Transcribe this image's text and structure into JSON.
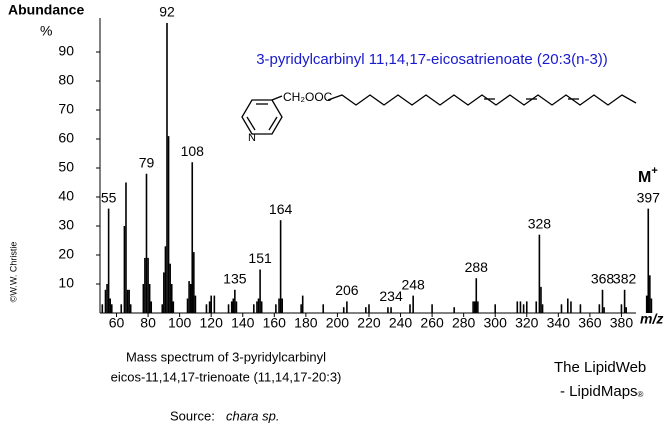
{
  "chart_data": {
    "type": "spectrum",
    "title": "3-pyridylcarbinyl 11,14,17-eicosatrienoate (20:3(n-3))",
    "y_label": "Abundance",
    "y_unit": "%",
    "x_label": "m/z",
    "molecular_ion": {
      "text": "M",
      "sup": "+"
    },
    "structure": {
      "group": "CH₂OOC",
      "atom": "N"
    },
    "caption": [
      "Mass spectrum of 3-pyridylcarbinyl",
      "eicos-11,14,17-trienoate (11,14,17-20:3)"
    ],
    "source": {
      "label": "Source:",
      "text": "chara sp."
    },
    "credit": [
      "The LipidWeb",
      "- LipidMaps",
      "®"
    ],
    "copyright": "©W.W. Christie",
    "color": "#000000",
    "title_color": "#1a1acd",
    "xlim": [
      47,
      400
    ],
    "ylim": [
      0,
      100
    ],
    "xticks": [
      60,
      80,
      100,
      120,
      140,
      160,
      180,
      200,
      220,
      240,
      260,
      280,
      300,
      320,
      340,
      360,
      380
    ],
    "yticks": [
      10,
      20,
      30,
      40,
      50,
      60,
      70,
      80,
      90
    ],
    "x": [
      51,
      53,
      54,
      55,
      56,
      57,
      63,
      65,
      66,
      67,
      68,
      69,
      77,
      78,
      79,
      80,
      81,
      82,
      89,
      90,
      91,
      92,
      93,
      94,
      95,
      96,
      105,
      106,
      107,
      108,
      109,
      110,
      117,
      119,
      120,
      122,
      131,
      133,
      134,
      135,
      136,
      147,
      149,
      150,
      151,
      152,
      161,
      163,
      164,
      165,
      177,
      178,
      191,
      204,
      206,
      218,
      220,
      232,
      234,
      246,
      248,
      260,
      274,
      286,
      287,
      288,
      289,
      300,
      314,
      316,
      318,
      320,
      326,
      328,
      329,
      330,
      342,
      346,
      348,
      354,
      366,
      368,
      369,
      380,
      382,
      383,
      396,
      397,
      398,
      399
    ],
    "values": [
      3,
      8,
      10,
      36,
      5,
      3,
      3,
      30,
      45,
      8,
      8,
      3,
      10,
      19,
      48,
      19,
      10,
      4,
      3,
      14,
      23,
      100,
      61,
      17,
      10,
      4,
      5,
      11,
      10,
      52,
      21,
      6,
      3,
      4,
      6,
      6,
      3,
      4,
      5,
      8,
      4,
      3,
      4,
      5,
      15,
      4,
      3,
      5,
      32,
      5,
      3,
      6,
      3,
      2,
      4,
      2,
      3,
      2,
      2,
      3,
      6,
      3,
      2,
      4,
      4,
      12,
      4,
      3,
      4,
      4,
      3,
      4,
      4,
      27,
      9,
      3,
      3,
      5,
      4,
      3,
      3,
      8,
      2,
      3,
      8,
      2,
      6,
      36,
      13,
      5
    ],
    "peak_labels": [
      55,
      79,
      92,
      108,
      135,
      151,
      164,
      206,
      234,
      248,
      288,
      328,
      368,
      382,
      397
    ]
  }
}
